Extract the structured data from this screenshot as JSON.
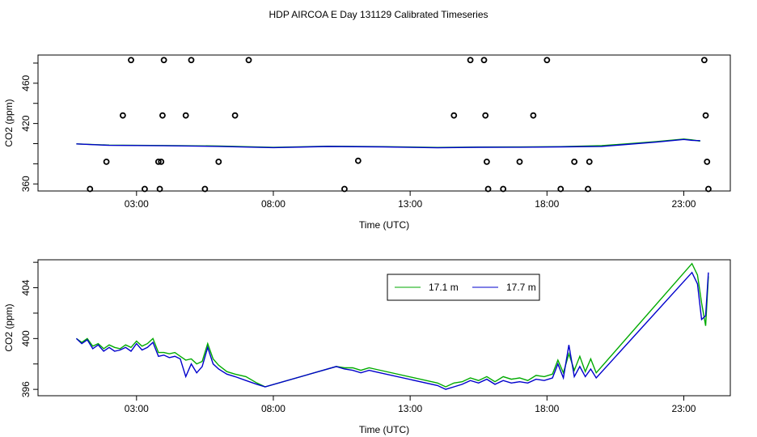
{
  "title": "HDP AIRCOA E  Day 131129  Calibrated Timeseries",
  "chart_data": [
    {
      "type": "line",
      "xlabel": "Time (UTC)",
      "ylabel": "CO2 (ppm)",
      "x_ticks": [
        "03:00",
        "08:00",
        "13:00",
        "18:00",
        "23:00"
      ],
      "x_tick_hours": [
        3,
        8,
        13,
        18,
        23
      ],
      "xlim": [
        -0.6,
        24.7
      ],
      "ylim": [
        353,
        488
      ],
      "y_ticks": [
        360,
        420,
        460
      ],
      "extra_y_ticks": [
        380,
        400,
        440,
        480
      ],
      "series": [
        {
          "color": "#00aa00",
          "x": [
            0.8,
            2.0,
            4.0,
            6.0,
            8.0,
            10.0,
            12.0,
            14.0,
            15.5,
            17.0,
            18.5,
            20.0,
            22.0,
            23.0,
            23.3,
            23.6
          ],
          "y": [
            399.8,
            398.6,
            398.2,
            397.7,
            396.3,
            397.4,
            397.0,
            396.2,
            396.6,
            396.7,
            397.0,
            398.0,
            402.0,
            404.6,
            403.8,
            402.5
          ]
        },
        {
          "color": "#0000cc",
          "x": [
            0.8,
            2.0,
            4.0,
            6.0,
            8.0,
            10.0,
            12.0,
            14.0,
            15.5,
            17.0,
            18.5,
            20.0,
            22.0,
            23.0,
            23.3,
            23.6
          ],
          "y": [
            399.8,
            398.3,
            397.9,
            397.3,
            396.1,
            397.2,
            396.8,
            395.9,
            396.4,
            396.5,
            396.8,
            397.3,
            401.5,
            404.2,
            403.3,
            403.0
          ]
        },
        {
          "type": "scatter",
          "marker": "open-circle",
          "x": [
            1.3,
            1.9,
            2.5,
            2.8,
            3.3,
            3.8,
            3.85,
            3.9,
            3.95,
            4.0,
            4.8,
            5.0,
            5.5,
            6.0,
            6.6,
            7.1,
            10.6,
            11.1,
            14.6,
            15.2,
            15.7,
            15.75,
            15.8,
            15.85,
            16.4,
            17.0,
            17.5,
            18.0,
            18.5,
            19.0,
            19.5,
            19.55,
            23.75,
            23.8,
            23.85,
            23.9
          ],
          "y": [
            355,
            382,
            428,
            483,
            355,
            382,
            355,
            382,
            428,
            483,
            428,
            483,
            355,
            382,
            428,
            483,
            355,
            383,
            428,
            483,
            483,
            428,
            382,
            355,
            355,
            382,
            428,
            483,
            355,
            382,
            355,
            382,
            483,
            428,
            382,
            355
          ]
        }
      ]
    },
    {
      "type": "line",
      "xlabel": "Time (UTC)",
      "ylabel": "CO2 (ppm)",
      "x_ticks": [
        "03:00",
        "08:00",
        "13:00",
        "18:00",
        "23:00"
      ],
      "x_tick_hours": [
        3,
        8,
        13,
        18,
        23
      ],
      "xlim": [
        -0.6,
        24.7
      ],
      "ylim": [
        395.5,
        406.2
      ],
      "y_ticks": [
        396,
        400,
        404
      ],
      "extra_y_ticks": [
        398,
        402,
        406
      ],
      "legend": "top-center",
      "series": [
        {
          "name": "17.1 m",
          "color": "#00aa00",
          "x": [
            0.8,
            1.0,
            1.2,
            1.4,
            1.6,
            1.8,
            2.0,
            2.2,
            2.4,
            2.6,
            2.8,
            3.0,
            3.2,
            3.4,
            3.6,
            3.8,
            4.0,
            4.2,
            4.4,
            4.6,
            4.8,
            5.0,
            5.2,
            5.4,
            5.6,
            5.8,
            6.0,
            6.3,
            6.6,
            7.0,
            7.4,
            7.7,
            10.3,
            10.6,
            10.9,
            11.2,
            11.5,
            11.7,
            14.0,
            14.3,
            14.6,
            14.9,
            15.2,
            15.5,
            15.8,
            16.1,
            16.4,
            16.7,
            17.0,
            17.3,
            17.6,
            17.9,
            18.2,
            18.4,
            18.6,
            18.8,
            19.0,
            19.2,
            19.4,
            19.6,
            19.8,
            23.3,
            23.5,
            23.65,
            23.8,
            23.9
          ],
          "y": [
            400.0,
            399.7,
            400.0,
            399.4,
            399.6,
            399.2,
            399.5,
            399.3,
            399.2,
            399.5,
            399.3,
            399.8,
            399.4,
            399.6,
            400.0,
            398.9,
            398.9,
            398.8,
            398.9,
            398.6,
            398.3,
            398.4,
            398.0,
            398.2,
            399.6,
            398.4,
            397.9,
            397.4,
            397.2,
            397.0,
            396.5,
            396.2,
            397.8,
            397.7,
            397.7,
            397.5,
            397.7,
            397.6,
            396.5,
            396.2,
            396.5,
            396.6,
            396.9,
            396.7,
            397.0,
            396.6,
            397.0,
            396.8,
            396.9,
            396.7,
            397.1,
            397.0,
            397.2,
            398.3,
            397.3,
            398.8,
            397.5,
            398.6,
            397.4,
            398.4,
            397.3,
            405.9,
            405.0,
            402.8,
            401.0,
            404.9
          ]
        },
        {
          "name": "17.7 m",
          "color": "#0000cc",
          "x": [
            0.8,
            1.0,
            1.2,
            1.4,
            1.6,
            1.8,
            2.0,
            2.2,
            2.4,
            2.6,
            2.8,
            3.0,
            3.2,
            3.4,
            3.6,
            3.8,
            4.0,
            4.2,
            4.4,
            4.6,
            4.8,
            5.0,
            5.2,
            5.4,
            5.6,
            5.8,
            6.0,
            6.3,
            6.6,
            7.0,
            7.4,
            7.7,
            10.3,
            10.6,
            10.9,
            11.2,
            11.5,
            11.7,
            14.0,
            14.3,
            14.6,
            14.9,
            15.2,
            15.5,
            15.8,
            16.1,
            16.4,
            16.7,
            17.0,
            17.3,
            17.6,
            17.9,
            18.2,
            18.4,
            18.6,
            18.8,
            19.0,
            19.2,
            19.4,
            19.6,
            19.8,
            23.3,
            23.5,
            23.65,
            23.8,
            23.9
          ],
          "y": [
            400.0,
            399.6,
            399.9,
            399.2,
            399.5,
            399.0,
            399.3,
            399.0,
            399.1,
            399.3,
            399.0,
            399.6,
            399.1,
            399.3,
            399.7,
            398.6,
            398.7,
            398.5,
            398.6,
            398.4,
            397.0,
            398.0,
            397.3,
            397.8,
            399.3,
            398.0,
            397.6,
            397.2,
            397.0,
            396.7,
            396.4,
            396.2,
            397.8,
            397.6,
            397.5,
            397.3,
            397.5,
            397.4,
            396.3,
            396.0,
            396.2,
            396.4,
            396.7,
            396.5,
            396.8,
            396.4,
            396.7,
            396.5,
            396.6,
            396.5,
            396.8,
            396.7,
            396.9,
            398.0,
            396.9,
            399.5,
            397.0,
            397.8,
            397.0,
            397.6,
            396.9,
            405.2,
            404.3,
            401.5,
            401.8,
            405.2
          ]
        }
      ]
    }
  ]
}
